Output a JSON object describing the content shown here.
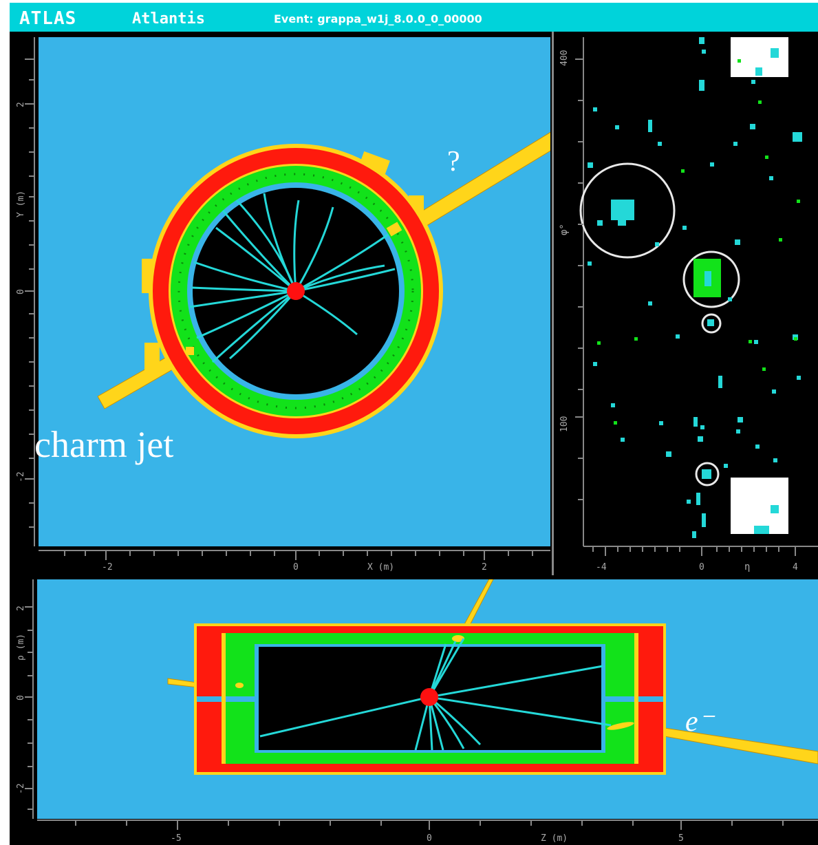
{
  "header": {
    "app": "ATLAS",
    "program": "Atlantis",
    "event": "Event: grappa_w1j_8.0.0_0_00000"
  },
  "xy_view": {
    "axis_x_label": "X (m)",
    "axis_y_label": "Y (m)",
    "x_ticks": [
      "-2",
      "0",
      "2"
    ],
    "y_ticks": [
      "2",
      "0",
      "-2"
    ],
    "annotations": {
      "question": "?",
      "charm_jet": "charm jet"
    }
  },
  "lego_view": {
    "axis_x_label": "η",
    "axis_y_label": "φ°",
    "x_ticks": [
      "-4",
      "0",
      "4"
    ],
    "y_ticks": [
      "400",
      "100"
    ]
  },
  "rz_view": {
    "axis_x_label": "Z (m)",
    "axis_y_label": "ρ (m)",
    "x_ticks": [
      "-5",
      "0",
      "5"
    ],
    "y_ticks": [
      "2",
      "0",
      "-2"
    ],
    "annotations": {
      "electron": "e⁻"
    }
  },
  "colors": {
    "background": "#39b4e8",
    "calorimeter_outer": "#ff1a0d",
    "calorimeter_inner": "#12e21a",
    "tracker": "#000000",
    "tracks": "#24d8d8",
    "jets": "#ffd51a",
    "vertex": "#ff1010",
    "frame": "#000000"
  }
}
